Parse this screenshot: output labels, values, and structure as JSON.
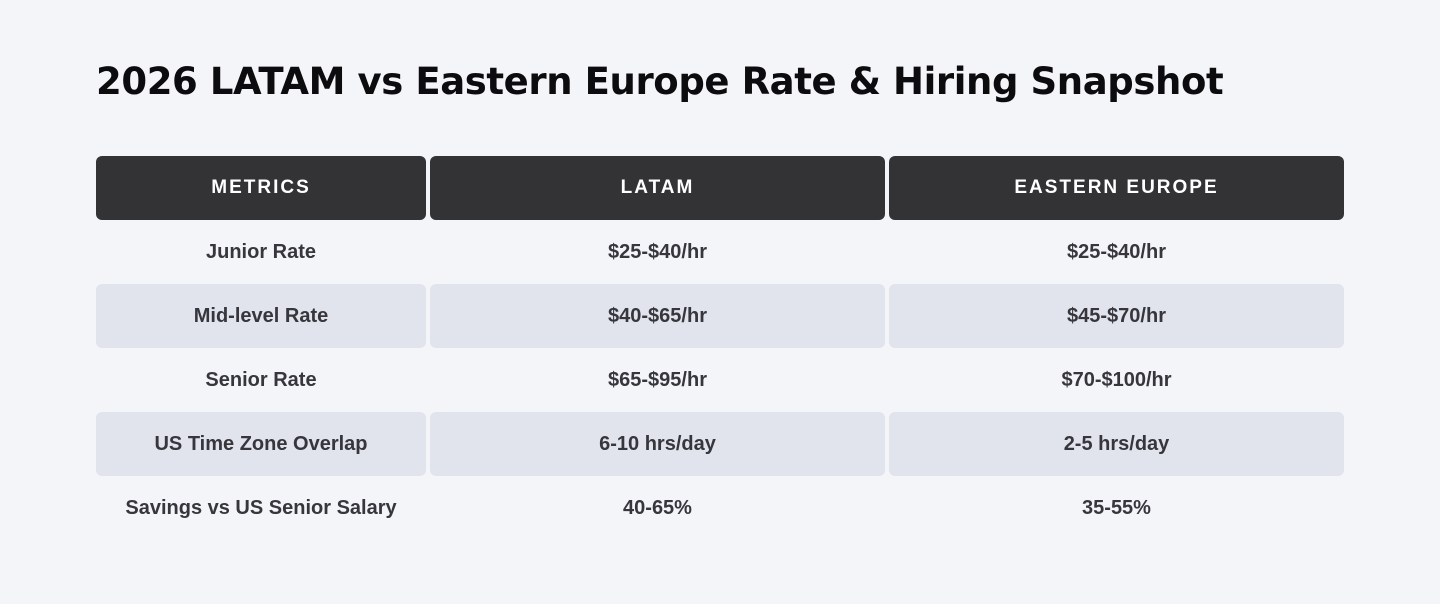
{
  "title": "2026 LATAM vs Eastern Europe Rate & Hiring Snapshot",
  "table": {
    "headers": [
      "METRICS",
      "LATAM",
      "EASTERN EUROPE"
    ],
    "rows": [
      [
        "Junior Rate",
        "$25-$40/hr",
        "$25-$40/hr"
      ],
      [
        "Mid-level Rate",
        "$40-$65/hr",
        "$45-$70/hr"
      ],
      [
        "Senior Rate",
        "$65-$95/hr",
        "$70-$100/hr"
      ],
      [
        "US Time Zone Overlap",
        "6-10 hrs/day",
        "2-5 hrs/day"
      ],
      [
        "Savings vs US Senior Salary",
        "40-65%",
        "35-55%"
      ]
    ]
  },
  "colors": {
    "background": "#f4f5f9",
    "header_bg": "#333335",
    "row_shade": "#e1e4ec"
  }
}
